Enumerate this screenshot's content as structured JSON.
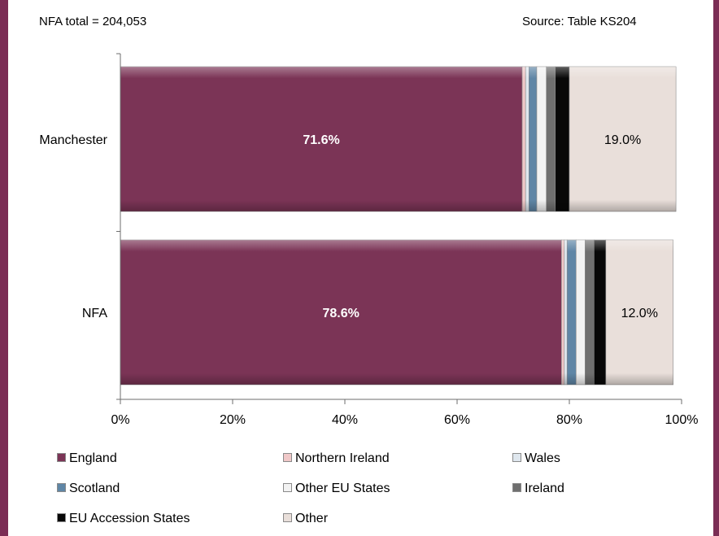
{
  "header": {
    "left_text": "NFA total = 204,053",
    "right_text": "Source: Table  KS204"
  },
  "chart_data": {
    "type": "bar",
    "orientation": "horizontal",
    "stacked": "percent",
    "categories": [
      "Manchester",
      "NFA"
    ],
    "series": [
      {
        "name": "England",
        "color": "#7b3456",
        "values": [
          71.6,
          78.6
        ]
      },
      {
        "name": "Northern Ireland",
        "color": "#f0c8c8",
        "values": [
          0.6,
          0.5
        ]
      },
      {
        "name": "Wales",
        "color": "#dfe7ee",
        "values": [
          0.6,
          0.5
        ]
      },
      {
        "name": "Scotland",
        "color": "#5f86a6",
        "values": [
          1.4,
          1.6
        ]
      },
      {
        "name": "Other EU States",
        "color": "#f2f2f2",
        "values": [
          1.7,
          1.6
        ]
      },
      {
        "name": "Ireland",
        "color": "#6f6f6f",
        "values": [
          1.6,
          1.6
        ]
      },
      {
        "name": "EU Accession States",
        "color": "#080808",
        "values": [
          2.5,
          2.1
        ]
      },
      {
        "name": "Other",
        "color": "#e9dfda",
        "values": [
          19.0,
          12.0
        ]
      }
    ],
    "data_labels": [
      {
        "category": "Manchester",
        "series": "England",
        "text": "71.6%"
      },
      {
        "category": "Manchester",
        "series": "Other",
        "text": "19.0%"
      },
      {
        "category": "NFA",
        "series": "England",
        "text": "78.6%"
      },
      {
        "category": "NFA",
        "series": "Other",
        "text": "12.0%"
      }
    ],
    "x_ticks": [
      "0%",
      "20%",
      "40%",
      "60%",
      "80%",
      "100%"
    ],
    "xlim": [
      0,
      100
    ],
    "grid": false,
    "legend_position": "bottom"
  }
}
